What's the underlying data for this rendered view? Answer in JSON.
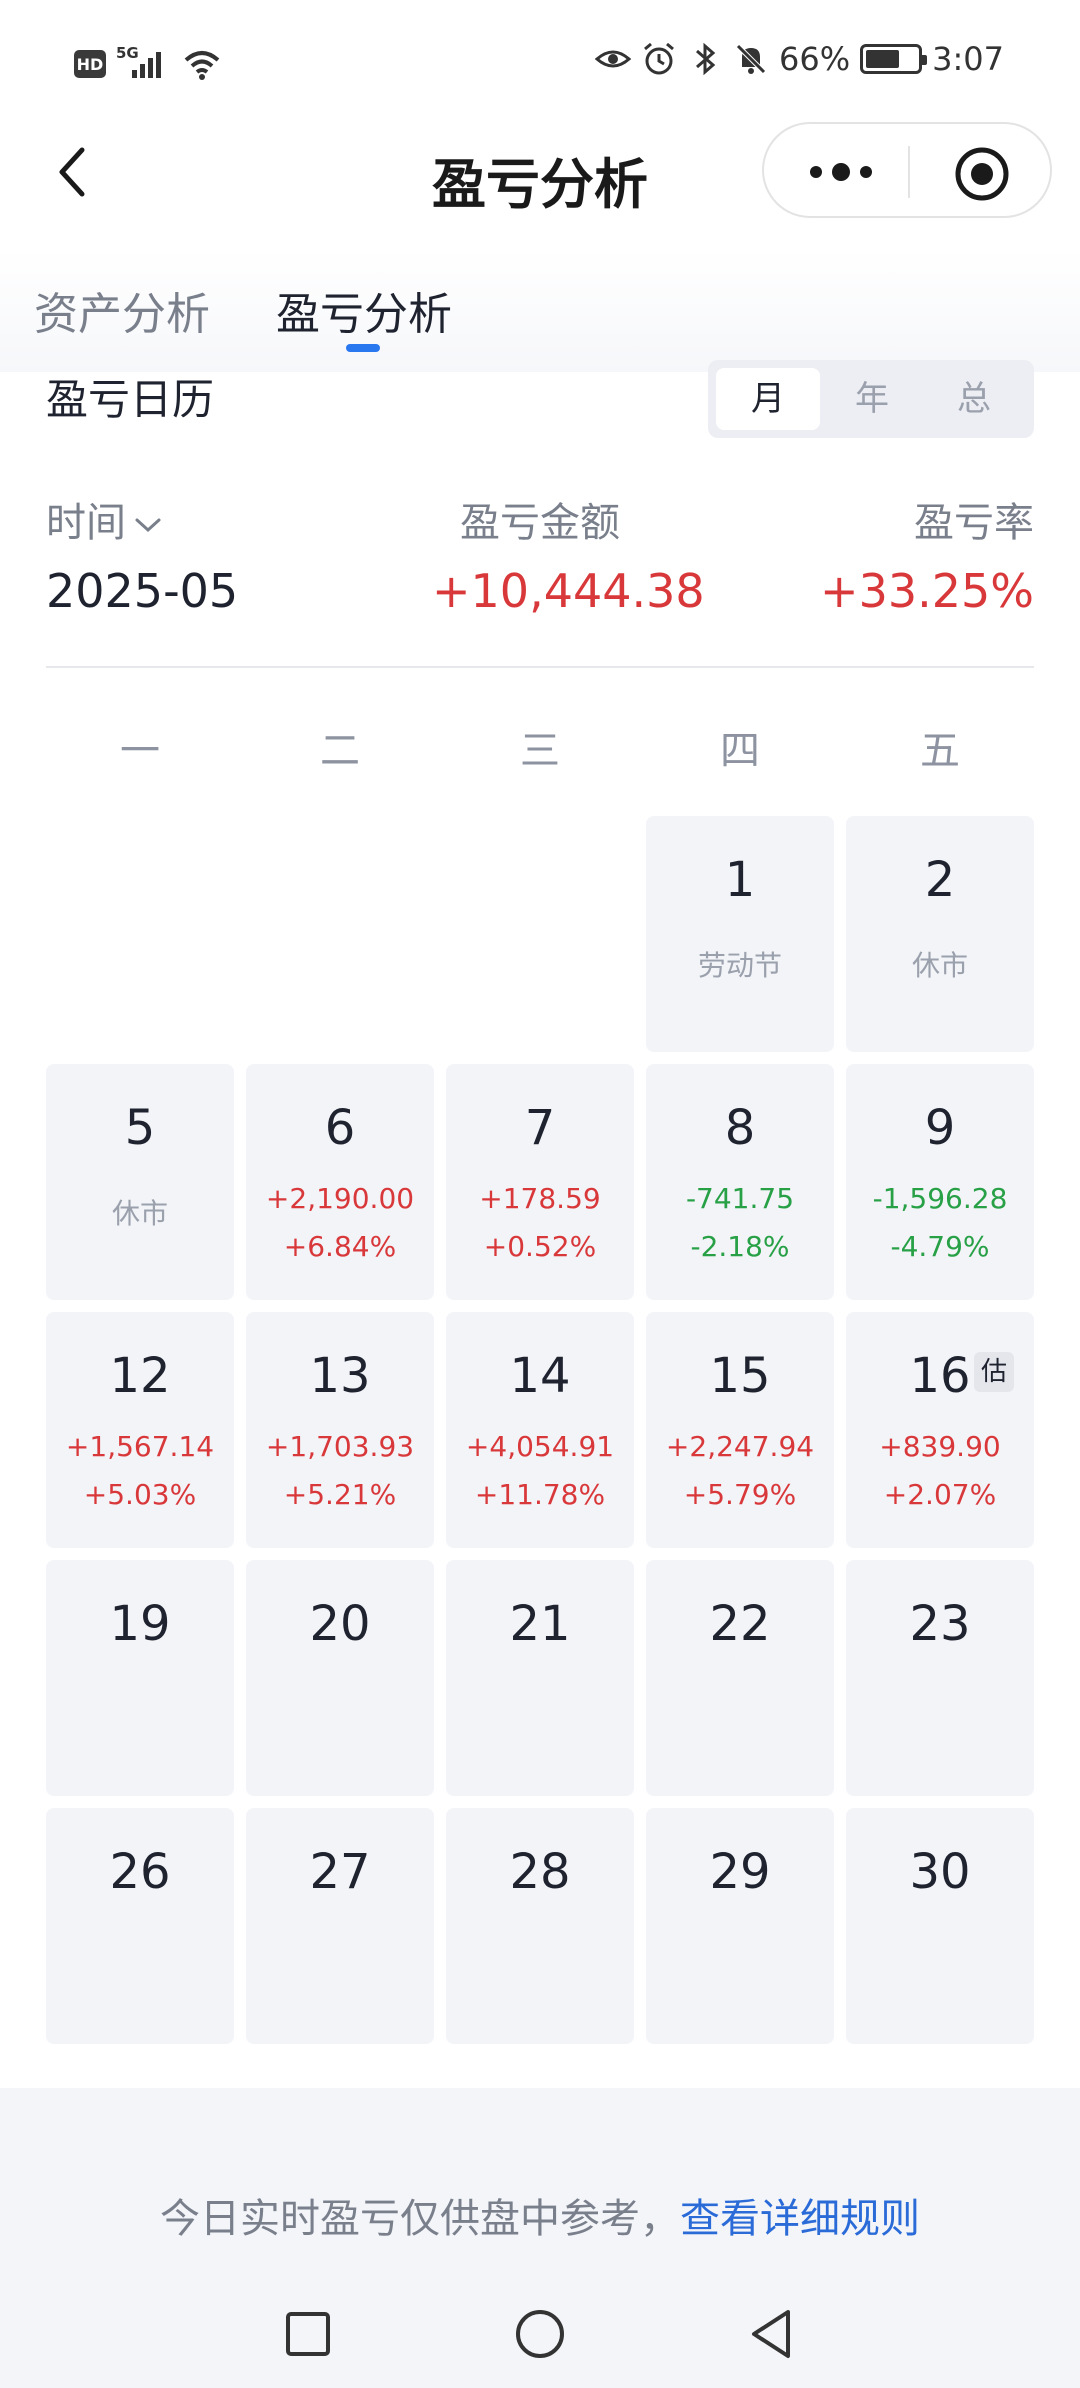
{
  "status_bar": {
    "hd": "HD",
    "network": "5G",
    "battery_percent": "66%",
    "battery_level": 0.66,
    "time": "3:07"
  },
  "nav": {
    "title": "盈亏分析",
    "back_icon": "chevron-left-icon",
    "more_icon": "more-dots-icon",
    "close_icon": "target-icon"
  },
  "tabs": [
    {
      "label": "资产分析",
      "active": false
    },
    {
      "label": "盈亏分析",
      "active": true
    }
  ],
  "calendar": {
    "title": "盈亏日历",
    "segments": [
      {
        "label": "月",
        "active": true
      },
      {
        "label": "年",
        "active": false
      },
      {
        "label": "总",
        "active": false
      }
    ],
    "summary": {
      "time_label": "时间",
      "amount_label": "盈亏金额",
      "rate_label": "盈亏率",
      "period": "2025-05",
      "amount": "+10,444.38",
      "rate": "+33.25%"
    },
    "weekdays": [
      "一",
      "二",
      "三",
      "四",
      "五"
    ],
    "weeks": [
      [
        null,
        null,
        null,
        {
          "day": "1",
          "note": "劳动节"
        },
        {
          "day": "2",
          "note": "休市"
        }
      ],
      [
        {
          "day": "5",
          "note": "休市"
        },
        {
          "day": "6",
          "amount": "+2,190.00",
          "rate": "+6.84%",
          "trend": "pos"
        },
        {
          "day": "7",
          "amount": "+178.59",
          "rate": "+0.52%",
          "trend": "pos"
        },
        {
          "day": "8",
          "amount": "-741.75",
          "rate": "-2.18%",
          "trend": "neg"
        },
        {
          "day": "9",
          "amount": "-1,596.28",
          "rate": "-4.79%",
          "trend": "neg"
        }
      ],
      [
        {
          "day": "12",
          "amount": "+1,567.14",
          "rate": "+5.03%",
          "trend": "pos"
        },
        {
          "day": "13",
          "amount": "+1,703.93",
          "rate": "+5.21%",
          "trend": "pos"
        },
        {
          "day": "14",
          "amount": "+4,054.91",
          "rate": "+11.78%",
          "trend": "pos"
        },
        {
          "day": "15",
          "amount": "+2,247.94",
          "rate": "+5.79%",
          "trend": "pos"
        },
        {
          "day": "16",
          "amount": "+839.90",
          "rate": "+2.07%",
          "trend": "pos",
          "badge": "估"
        }
      ],
      [
        {
          "day": "19"
        },
        {
          "day": "20"
        },
        {
          "day": "21"
        },
        {
          "day": "22"
        },
        {
          "day": "23"
        }
      ],
      [
        {
          "day": "26"
        },
        {
          "day": "27"
        },
        {
          "day": "28"
        },
        {
          "day": "29"
        },
        {
          "day": "30"
        }
      ]
    ],
    "colors": {
      "positive": "#d9383a",
      "negative": "#27a046"
    }
  },
  "footer": {
    "text": "今日实时盈亏仅供盘中参考，",
    "link": "查看详细规则"
  }
}
